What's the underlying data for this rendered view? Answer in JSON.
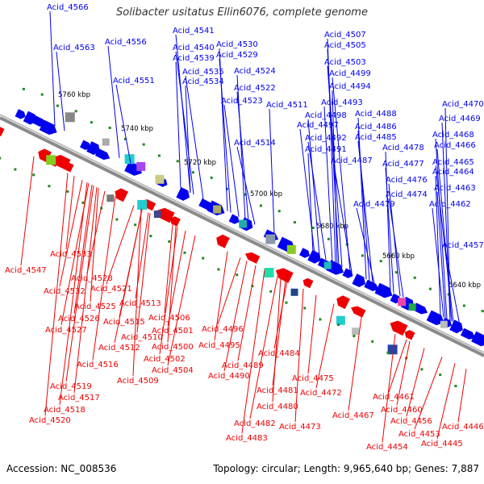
{
  "header": {
    "title": "Solibacter usitatus Ellin6076, complete genome"
  },
  "footer": {
    "accession": "Accession: NC_008536",
    "info": "Topology: circular; Length: 9,965,640 bp; Genes: 7,887"
  },
  "colors": {
    "forward_strand": "#0000ee",
    "reverse_strand": "#ee0000",
    "backbone": "#8a8a8a",
    "noncoding_marker": "#1e8a1e"
  },
  "scale_marks": [
    "5760 kbp",
    "5740 kbp",
    "5720 kbp",
    "5700 kbp",
    "5680 kbp",
    "5660 kbp",
    "5640 kbp"
  ],
  "forward_genes": [
    "Acid_4566",
    "Acid_4563",
    "Acid_4556",
    "Acid_4541",
    "Acid_4540",
    "Acid_4539",
    "Acid_4530",
    "Acid_4529",
    "Acid_4551",
    "Acid_4535",
    "Acid_4534",
    "Acid_4524",
    "Acid_4522",
    "Acid_4523",
    "Acid_4514",
    "Acid_4511",
    "Acid_4507",
    "Acid_4505",
    "Acid_4503",
    "Acid_4499",
    "Acid_4494",
    "Acid_4493",
    "Acid_4498",
    "Acid_4497",
    "Acid_4492",
    "Acid_4491",
    "Acid_4488",
    "Acid_4486",
    "Acid_4485",
    "Acid_4487",
    "Acid_4478",
    "Acid_4477",
    "Acid_4476",
    "Acid_4474",
    "Acid_4479",
    "Acid_4470",
    "Acid_4469",
    "Acid_4468",
    "Acid_4466",
    "Acid_4465",
    "Acid_4464",
    "Acid_4463",
    "Acid_4462",
    "Acid_4457"
  ],
  "reverse_genes": [
    "Acid_4533",
    "Acid_4547",
    "Acid_4528",
    "Acid_4532",
    "Acid_4521",
    "Acid_4525",
    "Acid_4513",
    "Acid_4526",
    "Acid_4515",
    "Acid_4527",
    "Acid_4506",
    "Acid_4510",
    "Acid_4501",
    "Acid_4496",
    "Acid_4512",
    "Acid_4500",
    "Acid_4495",
    "Acid_4502",
    "Acid_4516",
    "Acid_4504",
    "Acid_4509",
    "Acid_4484",
    "Acid_4489",
    "Acid_4490",
    "Acid_4519",
    "Acid_4475",
    "Acid_4481",
    "Acid_4472",
    "Acid_4517",
    "Acid_4518",
    "Acid_4480",
    "Acid_4467",
    "Acid_4461",
    "Acid_4520",
    "Acid_4482",
    "Acid_4473",
    "Acid_4460",
    "Acid_4456",
    "Acid_4483",
    "Acid_4453",
    "Acid_4446",
    "Acid_4454",
    "Acid_4445"
  ]
}
